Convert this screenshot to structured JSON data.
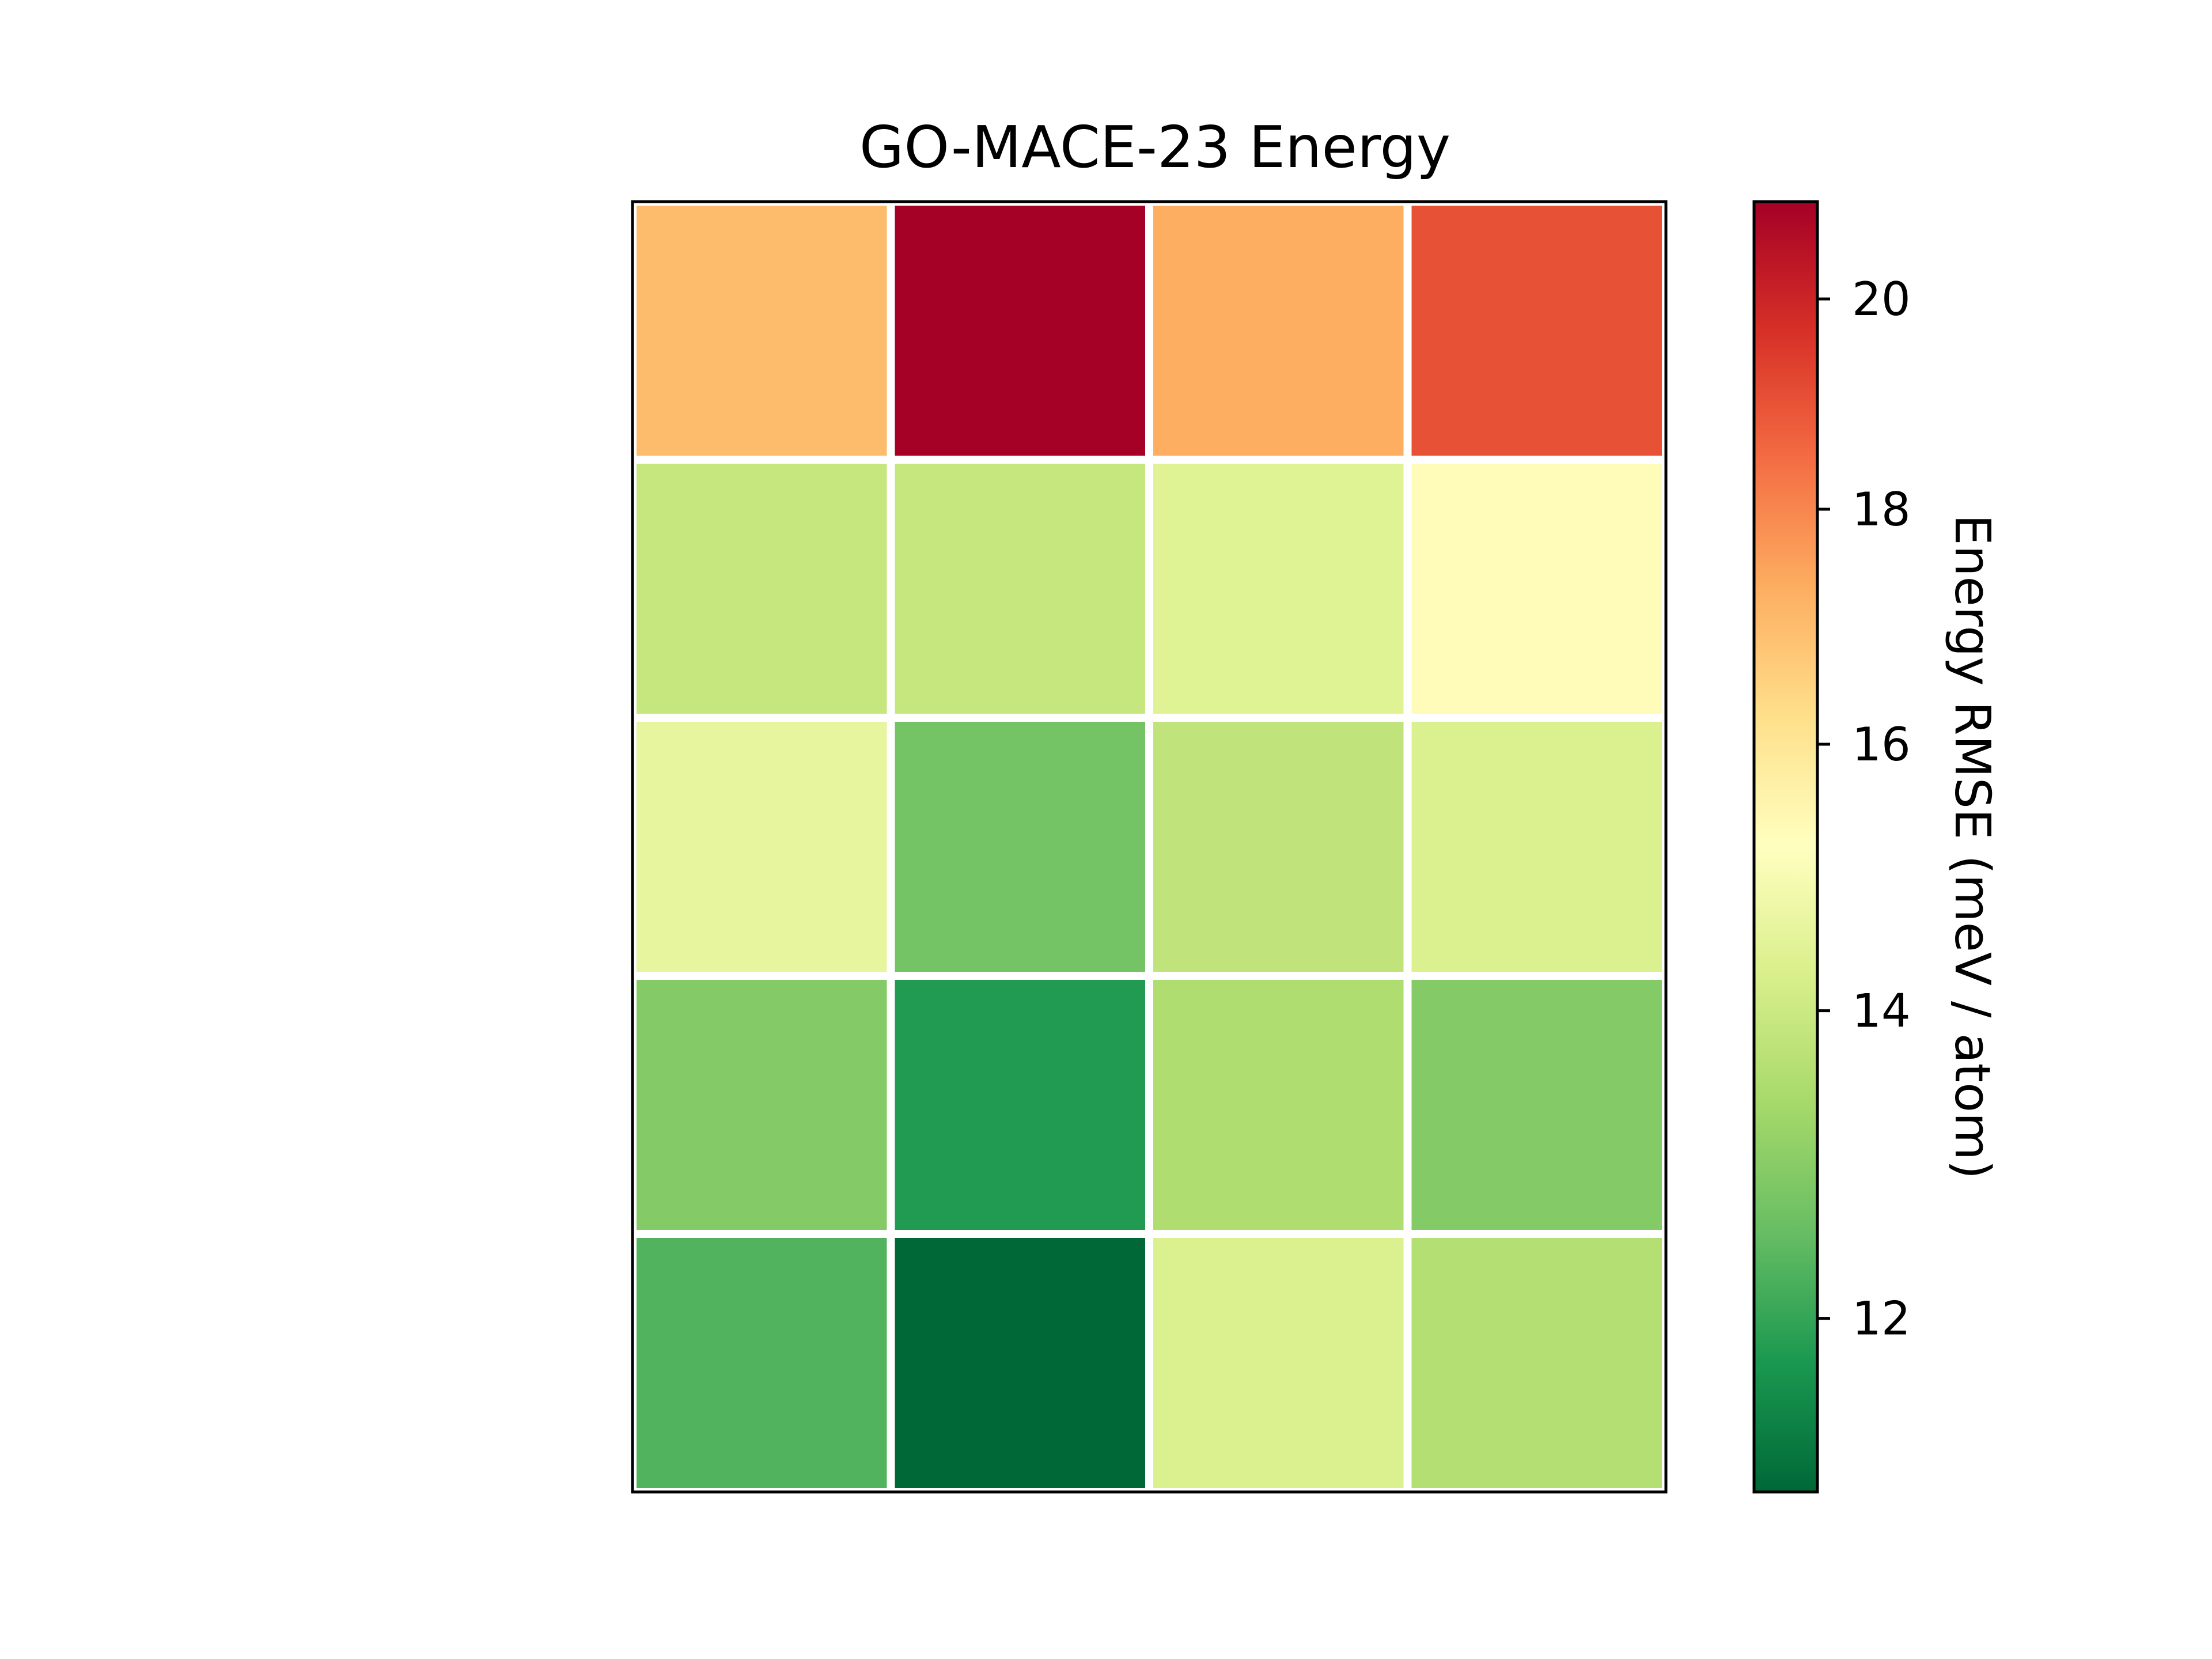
{
  "chart_data": {
    "type": "heatmap",
    "title": "GO-MACE-23 Energy",
    "rows": 5,
    "columns": 4,
    "values": [
      [
        17.0,
        21.0,
        17.3,
        19.0
      ],
      [
        13.9,
        13.9,
        14.4,
        15.3
      ],
      [
        14.6,
        12.7,
        13.8,
        14.3
      ],
      [
        12.9,
        11.8,
        13.5,
        12.9
      ],
      [
        12.3,
        11.0,
        14.3,
        13.6
      ]
    ],
    "colorbar": {
      "label": "Energy RMSE (meV / atom)",
      "colormap": "RdYlGn_r",
      "scale": "log",
      "min": 11.0,
      "max": 21.0,
      "ticks": [
        {
          "value": 12,
          "label": "12"
        },
        {
          "value": 14,
          "label": "14"
        },
        {
          "value": 16,
          "label": "16"
        },
        {
          "value": 18,
          "label": "18"
        },
        {
          "value": 20,
          "label": "20"
        }
      ]
    },
    "cell_edge_color": "#ffffff",
    "colormap_stops": [
      "#006837",
      "#1a9850",
      "#66bd63",
      "#a6d96a",
      "#d9ef8b",
      "#ffffbf",
      "#fee08b",
      "#fdae61",
      "#f46d43",
      "#d73027",
      "#a50026"
    ]
  }
}
